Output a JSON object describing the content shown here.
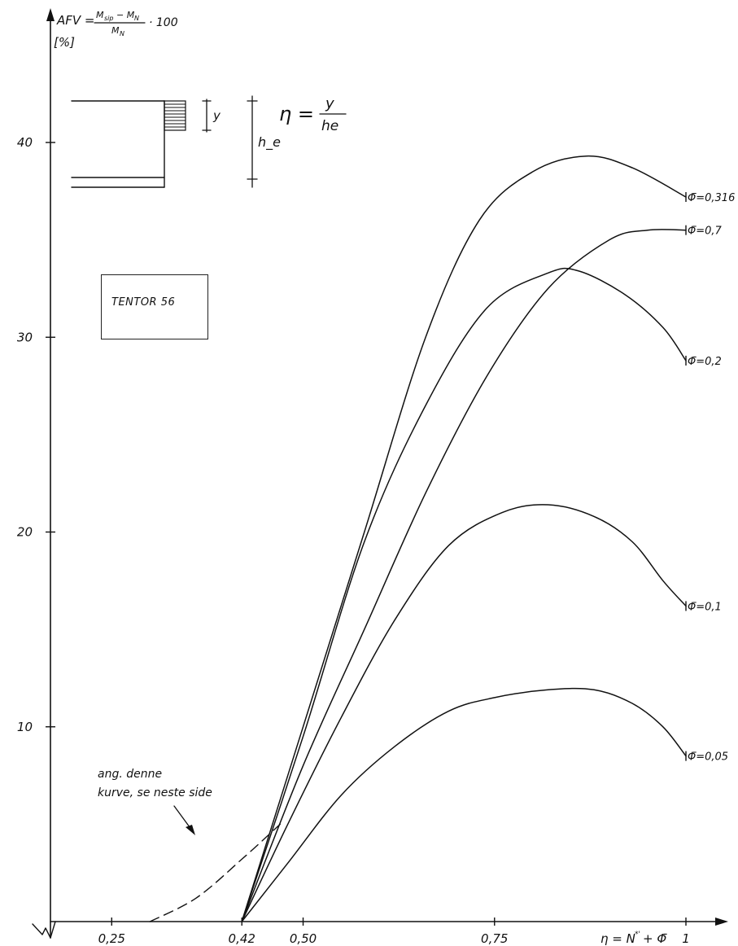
{
  "chart_data": {
    "type": "line",
    "ylabel": "AFV = (M_sip − M_N)/M_N · 100",
    "yunit": "[%]",
    "xlabel": "η = N*' + Φ̄",
    "eta_definition": "η = y/h_e",
    "diagram_labels": {
      "y": "y",
      "he": "h_e"
    },
    "note": "ang. denne kurve, se neste side",
    "box_label": "TENTOR 56",
    "x_ticks": [
      "0,25",
      "0,42",
      "0,50",
      "0,75",
      "1"
    ],
    "y_ticks": [
      "10",
      "20",
      "30",
      "40"
    ],
    "xlim": [
      0.17,
      1.07
    ],
    "ylim": [
      0,
      47
    ],
    "series": [
      {
        "name": "Φ̄=0,316",
        "points": [
          [
            0.42,
            0
          ],
          [
            0.5,
            10
          ],
          [
            0.58,
            20
          ],
          [
            0.66,
            30
          ],
          [
            0.73,
            36
          ],
          [
            0.8,
            38.5
          ],
          [
            0.87,
            39.3
          ],
          [
            0.93,
            38.7
          ],
          [
            1.0,
            37.2
          ]
        ]
      },
      {
        "name": "Φ̄=0,7",
        "points": [
          [
            0.42,
            0
          ],
          [
            0.5,
            8
          ],
          [
            0.58,
            15
          ],
          [
            0.66,
            22
          ],
          [
            0.74,
            28
          ],
          [
            0.82,
            32.5
          ],
          [
            0.9,
            35
          ],
          [
            0.95,
            35.5
          ],
          [
            1.0,
            35.5
          ]
        ]
      },
      {
        "name": "Φ̄=0,2",
        "points": [
          [
            0.42,
            0
          ],
          [
            0.5,
            9.5
          ],
          [
            0.58,
            19.5
          ],
          [
            0.66,
            26.5
          ],
          [
            0.74,
            31.5
          ],
          [
            0.82,
            33.3
          ],
          [
            0.86,
            33.4
          ],
          [
            0.92,
            32.2
          ],
          [
            0.97,
            30.5
          ],
          [
            1.0,
            28.8
          ]
        ]
      },
      {
        "name": "Φ̄=0,1",
        "points": [
          [
            0.42,
            0
          ],
          [
            0.48,
            5
          ],
          [
            0.55,
            10.5
          ],
          [
            0.62,
            15.5
          ],
          [
            0.69,
            19.3
          ],
          [
            0.76,
            21
          ],
          [
            0.82,
            21.4
          ],
          [
            0.88,
            20.8
          ],
          [
            0.93,
            19.5
          ],
          [
            0.97,
            17.5
          ],
          [
            1.0,
            16.2
          ]
        ]
      },
      {
        "name": "Φ̄=0,05",
        "points": [
          [
            0.42,
            0
          ],
          [
            0.48,
            3
          ],
          [
            0.55,
            6.5
          ],
          [
            0.62,
            9
          ],
          [
            0.69,
            10.8
          ],
          [
            0.75,
            11.5
          ],
          [
            0.82,
            11.9
          ],
          [
            0.88,
            11.9
          ],
          [
            0.93,
            11.2
          ],
          [
            0.97,
            10
          ],
          [
            1.0,
            8.5
          ]
        ]
      }
    ],
    "dashed_curve": {
      "points": [
        [
          0.3,
          0
        ],
        [
          0.36,
          1.2
        ],
        [
          0.42,
          3.2
        ],
        [
          0.47,
          5
        ]
      ]
    }
  }
}
